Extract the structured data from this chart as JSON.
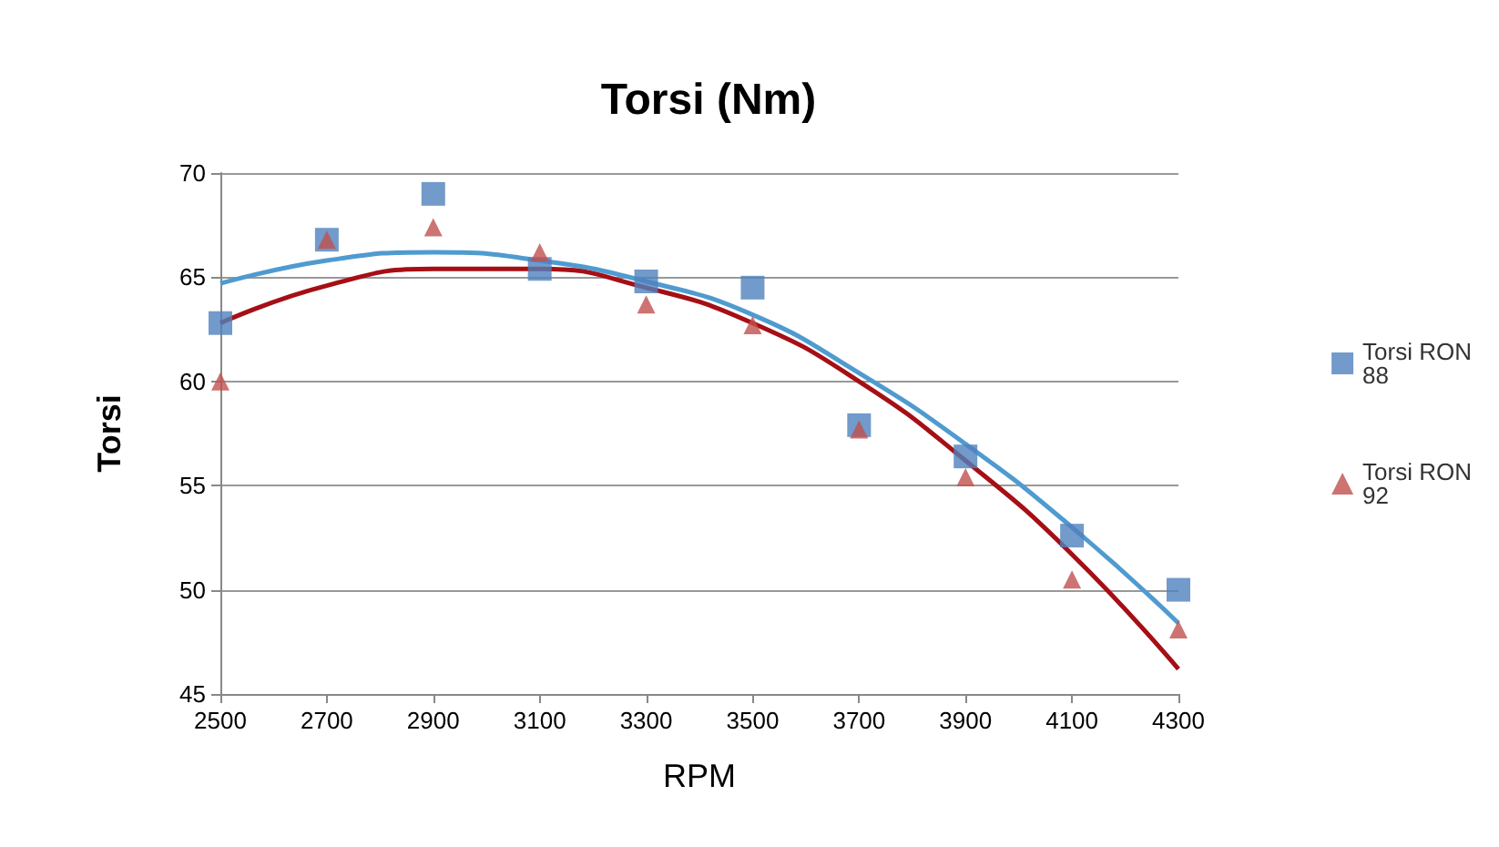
{
  "chart_data": {
    "type": "scatter",
    "title": "Torsi (Nm)",
    "xlabel": "RPM",
    "ylabel": "Torsi",
    "x": [
      2500,
      2700,
      2900,
      3100,
      3300,
      3500,
      3700,
      3900,
      4100,
      4300
    ],
    "xlim": [
      2500,
      4300
    ],
    "xticks": [
      2500,
      2700,
      2900,
      3100,
      3300,
      3500,
      3700,
      3900,
      4100,
      4300
    ],
    "ylim": [
      45,
      70
    ],
    "yticks": [
      45,
      50,
      55,
      60,
      65,
      70
    ],
    "grid": "y",
    "legend": "right",
    "series": [
      {
        "name": "Torsi RON 88",
        "color": "#4f81bd",
        "marker": "square",
        "values": [
          62.8,
          66.8,
          69.0,
          65.4,
          64.8,
          64.5,
          57.9,
          56.4,
          52.6,
          50.0
        ]
      },
      {
        "name": "Torsi RON 92",
        "color": "#c0504d",
        "marker": "triangle",
        "values": [
          60.0,
          66.8,
          67.4,
          66.2,
          63.7,
          62.7,
          57.7,
          55.4,
          50.5,
          48.1
        ]
      },
      {
        "type": "line",
        "color": "#4f9bd0",
        "marker": "none",
        "x": [
          2500,
          2700,
          2900,
          3100,
          3300,
          3500,
          3700,
          3900,
          4100,
          4300
        ],
        "values": [
          64.7,
          65.8,
          66.2,
          65.8,
          64.8,
          63.2,
          60.4,
          57.0,
          53.0,
          48.4
        ]
      },
      {
        "type": "line",
        "color": "#a50f15",
        "marker": "none",
        "x": [
          2500,
          2700,
          2900,
          3100,
          3300,
          3500,
          3700,
          3900,
          4100,
          4300
        ],
        "values": [
          62.8,
          64.6,
          65.4,
          65.4,
          64.5,
          62.8,
          60.0,
          56.2,
          51.7,
          46.2
        ]
      }
    ]
  }
}
